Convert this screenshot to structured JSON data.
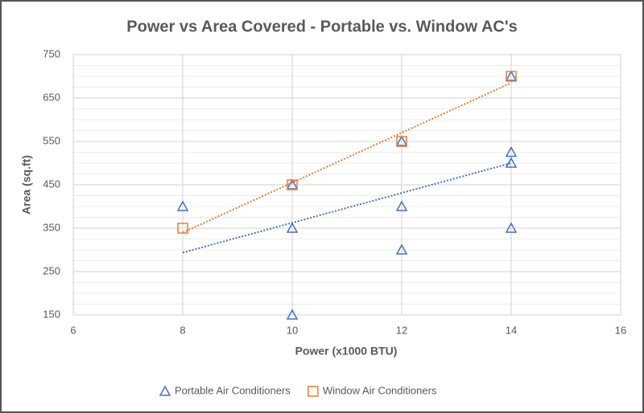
{
  "chart_data": {
    "type": "scatter",
    "title": "Power vs Area Covered - Portable vs. Window AC's",
    "x_label": "Power (x1000 BTU)",
    "y_label": "Area (sq.ft)",
    "xlim": [
      6,
      16
    ],
    "xticks": [
      6,
      8,
      10,
      12,
      14,
      16
    ],
    "ylim": [
      150,
      750
    ],
    "yticks": [
      150,
      250,
      350,
      450,
      550,
      650,
      750
    ],
    "grid": true,
    "legend": "bottom",
    "trendline": true,
    "series": [
      {
        "name": "Portable Air Conditioners",
        "color": "#4472c4",
        "marker": "triangle",
        "x": [
          8,
          10,
          10,
          10,
          12,
          12,
          12,
          14,
          14,
          14,
          14
        ],
        "y": [
          400,
          450,
          350,
          150,
          550,
          400,
          300,
          700,
          525,
          500,
          350
        ]
      },
      {
        "name": "Window Air Conditioners",
        "color": "#ed7d31",
        "marker": "square",
        "x": [
          8,
          10,
          12,
          14
        ],
        "y": [
          350,
          450,
          550,
          700
        ]
      }
    ]
  }
}
